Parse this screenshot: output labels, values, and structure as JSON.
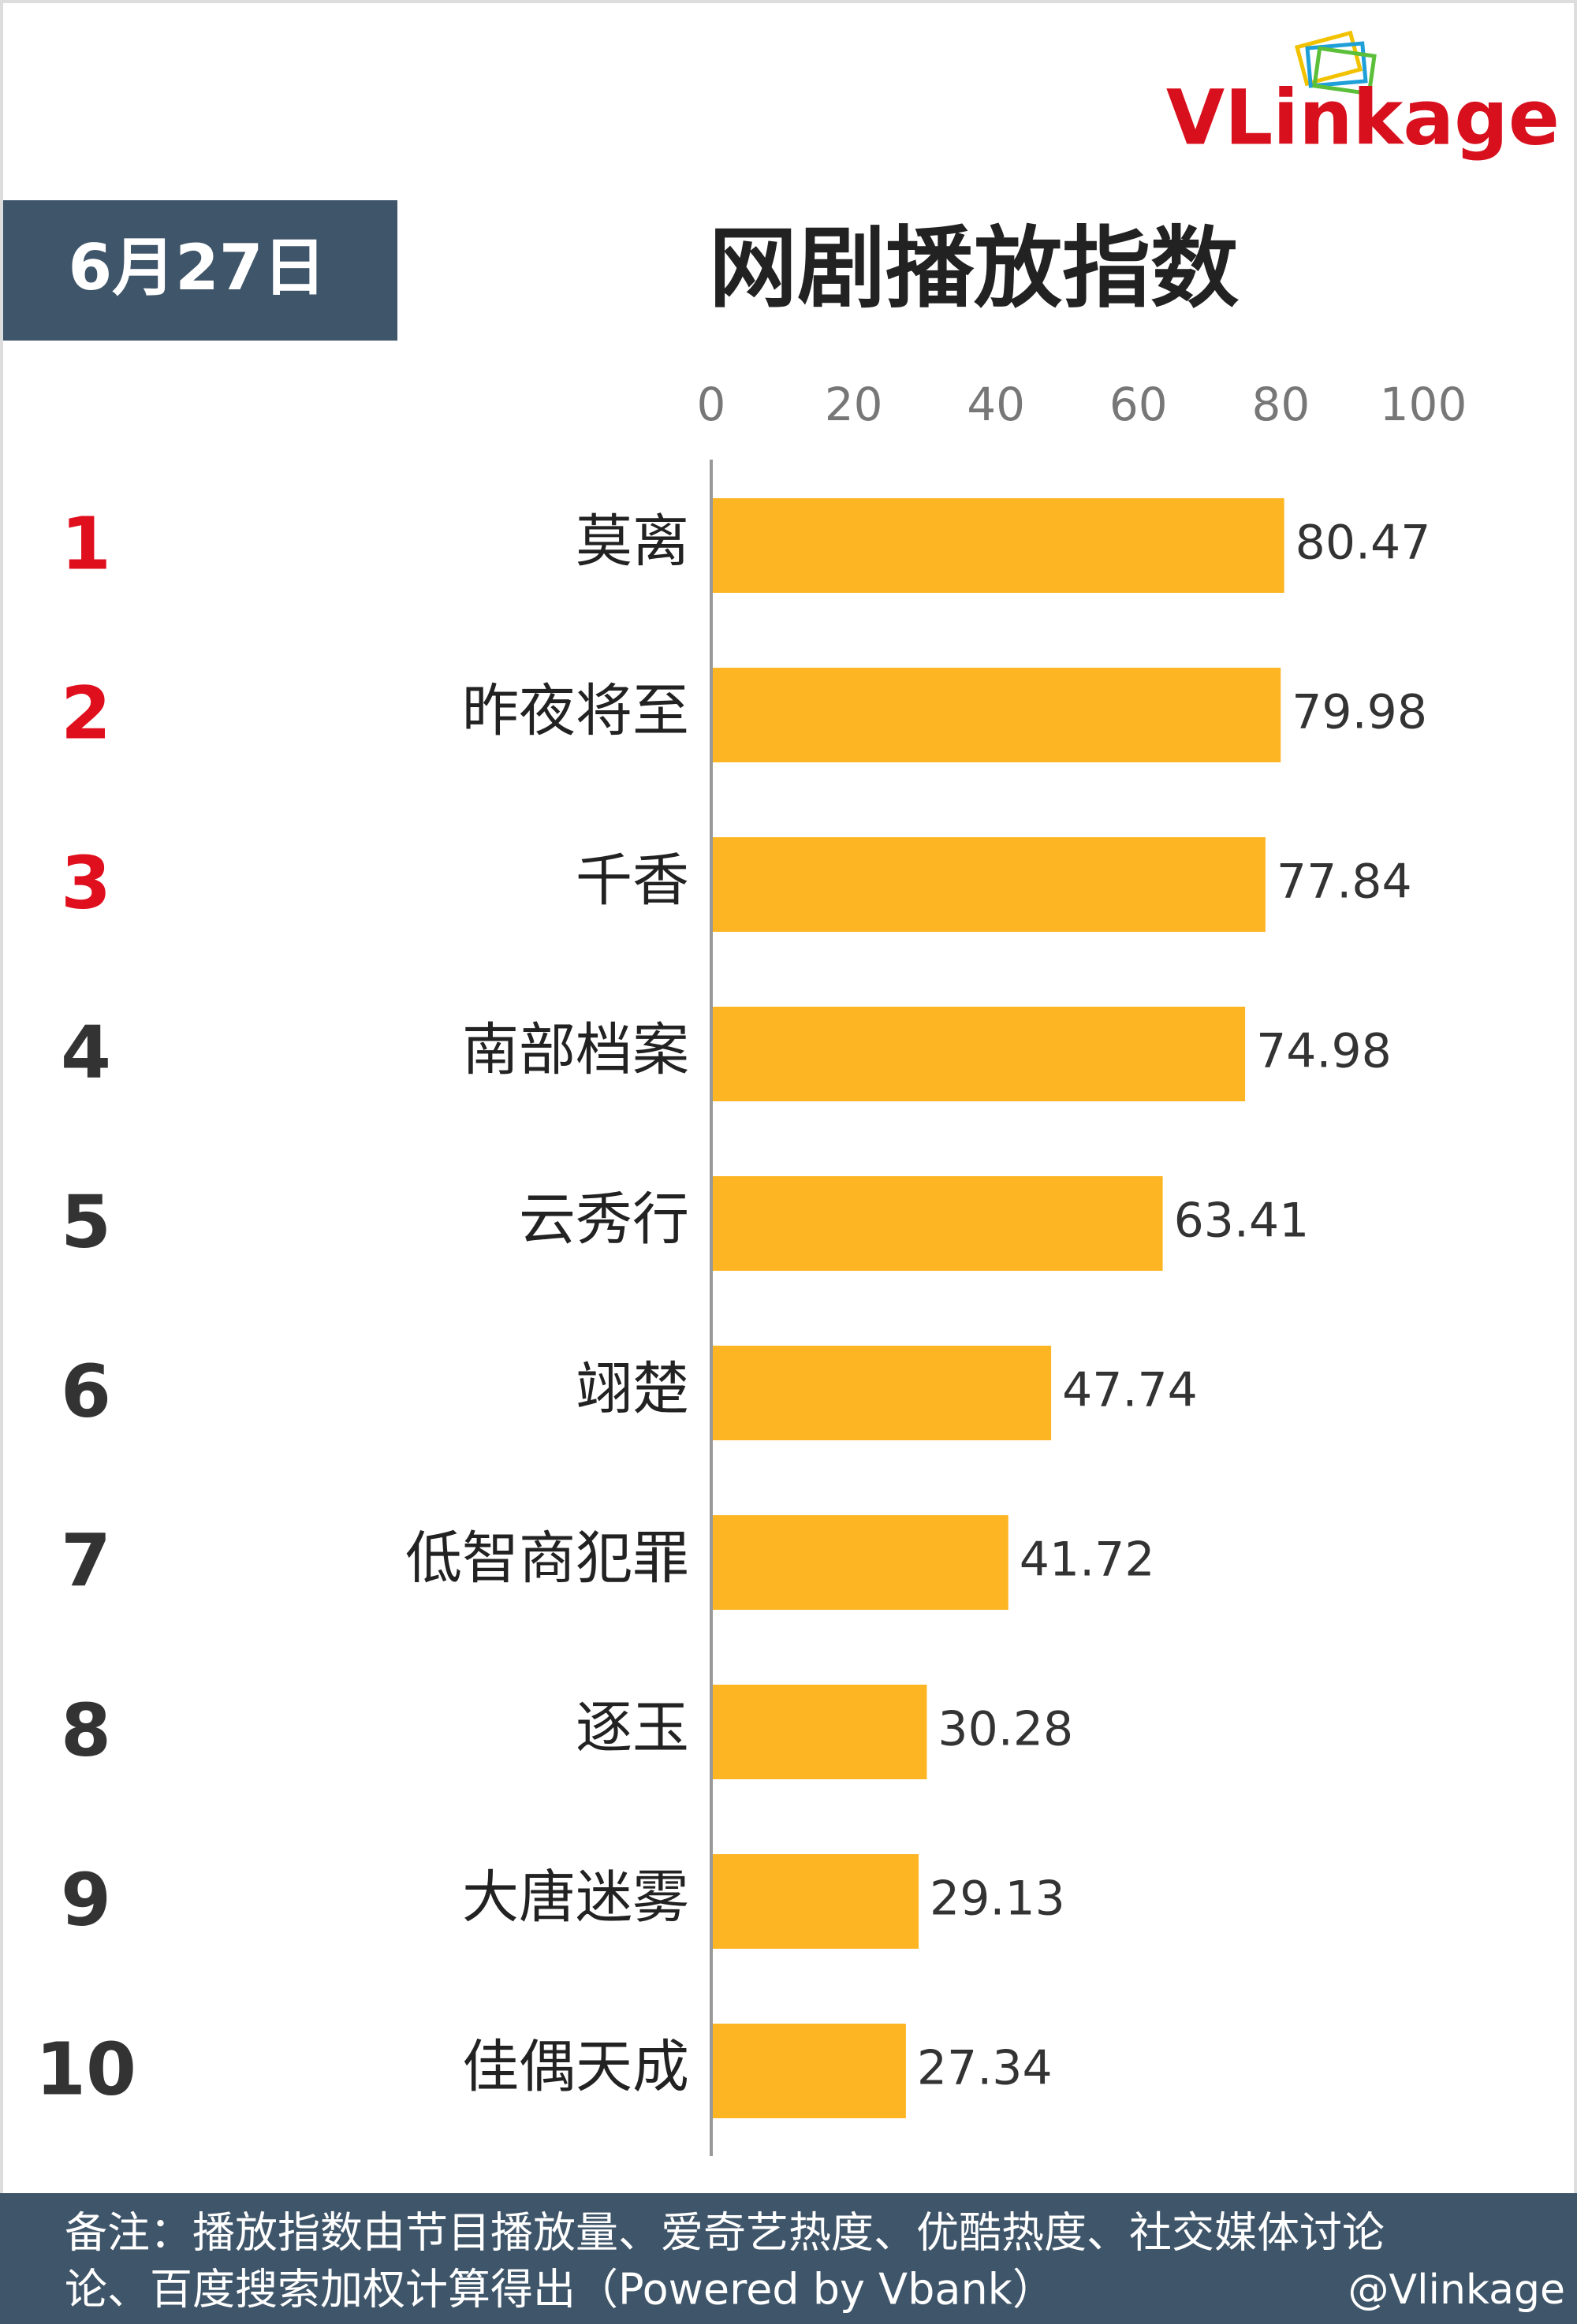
{
  "header": {
    "date": "6月27日",
    "logo": "VLinkage"
  },
  "chart_data": {
    "type": "hbar",
    "title": "网剧播放指数",
    "ranks": [
      "1",
      "2",
      "3",
      "4",
      "5",
      "6",
      "7",
      "8",
      "9",
      "10"
    ],
    "categories": [
      "莫离",
      "昨夜将至",
      "千香",
      "南部档案",
      "云秀行",
      "翊楚",
      "低智商犯罪",
      "逐玉",
      "大唐迷雾",
      "佳偶天成"
    ],
    "values": [
      80.47,
      79.98,
      77.84,
      74.98,
      63.41,
      47.74,
      41.72,
      30.28,
      29.13,
      27.34
    ],
    "color": "#fdb523",
    "top_rank_color": "#e00f1e",
    "rank_color": "#333333",
    "xlim": [
      0,
      100
    ],
    "xticks": [
      0,
      20,
      40,
      60,
      80,
      100
    ],
    "grid": false
  },
  "footer": {
    "note": [
      "备注：播放指数由节目播放量、爱奇艺热度、优酷热度、社交媒体讨论",
      "论、百度搜索加权计算得出（Powered by Vbank）"
    ],
    "watermark": "@Vlinkage"
  }
}
